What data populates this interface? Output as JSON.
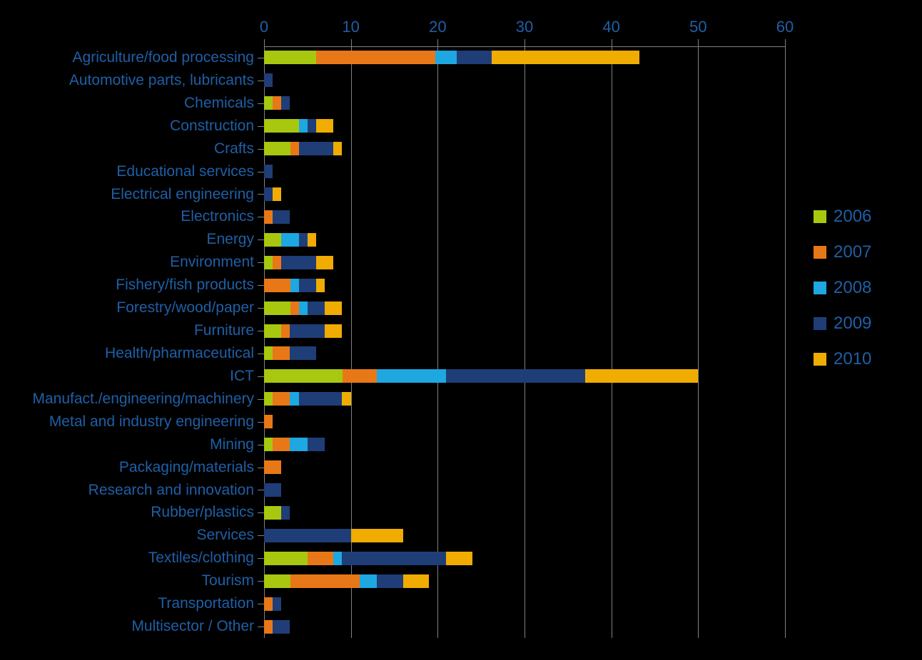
{
  "chart": {
    "type": "stacked-horizontal-bar",
    "background_color": "#000000",
    "text_color": "#1f5fa6",
    "gridline_color": "#808080",
    "xlim": [
      0,
      60
    ],
    "xtick_step": 10,
    "xticks": [
      0,
      10,
      20,
      30,
      40,
      50,
      60
    ],
    "axis_label_fontsize": 22,
    "category_label_fontsize": 21,
    "legend_fontsize": 24,
    "series": [
      {
        "name": "2006",
        "color": "#a7c80f"
      },
      {
        "name": "2007",
        "color": "#e87817"
      },
      {
        "name": "2008",
        "color": "#1ea7e0"
      },
      {
        "name": "2009",
        "color": "#1f3e78"
      },
      {
        "name": "2010",
        "color": "#f0ac00"
      }
    ],
    "categories": [
      {
        "label": "Agriculture/food processing",
        "values": [
          6.0,
          13.7,
          2.5,
          4.0,
          17.0
        ]
      },
      {
        "label": "Automotive parts, lubricants",
        "values": [
          0.0,
          0.0,
          0.0,
          1.0,
          0.0
        ]
      },
      {
        "label": "Chemicals",
        "values": [
          1.0,
          1.0,
          0.0,
          1.0,
          0.0
        ]
      },
      {
        "label": "Construction",
        "values": [
          4.0,
          0.0,
          1.0,
          1.0,
          2.0
        ]
      },
      {
        "label": "Crafts",
        "values": [
          3.0,
          1.0,
          0.0,
          4.0,
          1.0
        ]
      },
      {
        "label": "Educational services",
        "values": [
          0.0,
          0.0,
          0.0,
          1.0,
          0.0
        ]
      },
      {
        "label": "Electrical engineering",
        "values": [
          0.0,
          0.0,
          0.0,
          1.0,
          1.0
        ]
      },
      {
        "label": "Electronics",
        "values": [
          0.0,
          1.0,
          0.0,
          2.0,
          0.0
        ]
      },
      {
        "label": "Energy",
        "values": [
          2.0,
          0.0,
          2.0,
          1.0,
          1.0
        ]
      },
      {
        "label": "Environment",
        "values": [
          1.0,
          1.0,
          0.0,
          4.0,
          2.0
        ]
      },
      {
        "label": "Fishery/fish products",
        "values": [
          0.0,
          3.0,
          1.0,
          2.0,
          1.0
        ]
      },
      {
        "label": "Forestry/wood/paper",
        "values": [
          3.0,
          1.0,
          1.0,
          2.0,
          2.0
        ]
      },
      {
        "label": "Furniture",
        "values": [
          2.0,
          1.0,
          0.0,
          4.0,
          2.0
        ]
      },
      {
        "label": "Health/pharmaceutical",
        "values": [
          1.0,
          2.0,
          0.0,
          3.0,
          0.0
        ]
      },
      {
        "label": "ICT",
        "values": [
          9.0,
          4.0,
          8.0,
          16.0,
          13.0
        ]
      },
      {
        "label": "Manufact./engineering/machinery",
        "values": [
          1.0,
          2.0,
          1.0,
          5.0,
          1.0
        ]
      },
      {
        "label": "Metal and industry engineering",
        "values": [
          0.0,
          1.0,
          0.0,
          0.0,
          0.0
        ]
      },
      {
        "label": "Mining",
        "values": [
          1.0,
          2.0,
          2.0,
          2.0,
          0.0
        ]
      },
      {
        "label": "Packaging/materials",
        "values": [
          0.0,
          2.0,
          0.0,
          0.0,
          0.0
        ]
      },
      {
        "label": "Research and innovation",
        "values": [
          0.0,
          0.0,
          0.0,
          2.0,
          0.0
        ]
      },
      {
        "label": "Rubber/plastics",
        "values": [
          2.0,
          0.0,
          0.0,
          1.0,
          0.0
        ]
      },
      {
        "label": "Services",
        "values": [
          0.0,
          0.0,
          0.0,
          10.0,
          6.0
        ]
      },
      {
        "label": "Textiles/clothing",
        "values": [
          5.0,
          3.0,
          1.0,
          12.0,
          3.0
        ]
      },
      {
        "label": "Tourism",
        "values": [
          3.0,
          8.0,
          2.0,
          3.0,
          3.0
        ]
      },
      {
        "label": "Transportation",
        "values": [
          0.0,
          1.0,
          0.0,
          1.0,
          0.0
        ]
      },
      {
        "label": "Multisector / Other",
        "values": [
          0.0,
          1.0,
          0.0,
          2.0,
          0.0
        ]
      }
    ]
  }
}
